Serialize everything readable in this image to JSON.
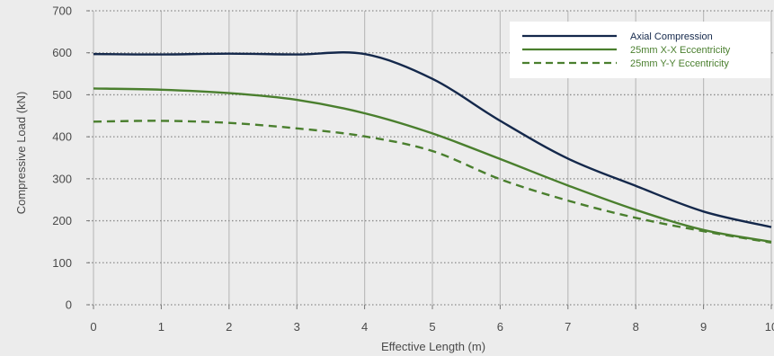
{
  "chart_data": {
    "type": "line",
    "xlabel": "Effective Length (m)",
    "ylabel": "Compressive Load (kN)",
    "xlim": [
      0,
      10
    ],
    "ylim": [
      0,
      700
    ],
    "x_ticks": [
      "0",
      "1",
      "2",
      "3",
      "4",
      "5",
      "6",
      "7",
      "8",
      "9",
      "10"
    ],
    "y_ticks": [
      "0",
      "100",
      "200",
      "300",
      "400",
      "500",
      "600",
      "700"
    ],
    "grid": true,
    "legend_position": "top-right",
    "series": [
      {
        "name": "Axial Compression",
        "color": "#14284b",
        "style": "solid",
        "x": [
          0,
          1,
          2,
          3,
          4,
          5,
          6,
          7,
          8,
          9,
          10
        ],
        "values": [
          597,
          596,
          598,
          596,
          597,
          538,
          438,
          348,
          283,
          222,
          185
        ]
      },
      {
        "name": "25mm X-X Eccentricity",
        "color": "#4a7f2e",
        "style": "solid",
        "x": [
          0,
          1,
          2,
          3,
          4,
          5,
          6,
          7,
          8,
          9,
          10
        ],
        "values": [
          515,
          512,
          504,
          488,
          456,
          408,
          347,
          284,
          226,
          178,
          150
        ]
      },
      {
        "name": "25mm Y-Y Eccentricity",
        "color": "#4a7f2e",
        "style": "dashed",
        "x": [
          0,
          1,
          2,
          3,
          4,
          5,
          6,
          7,
          8,
          9,
          10
        ],
        "values": [
          436,
          438,
          433,
          420,
          401,
          366,
          299,
          248,
          207,
          175,
          148
        ]
      }
    ]
  }
}
